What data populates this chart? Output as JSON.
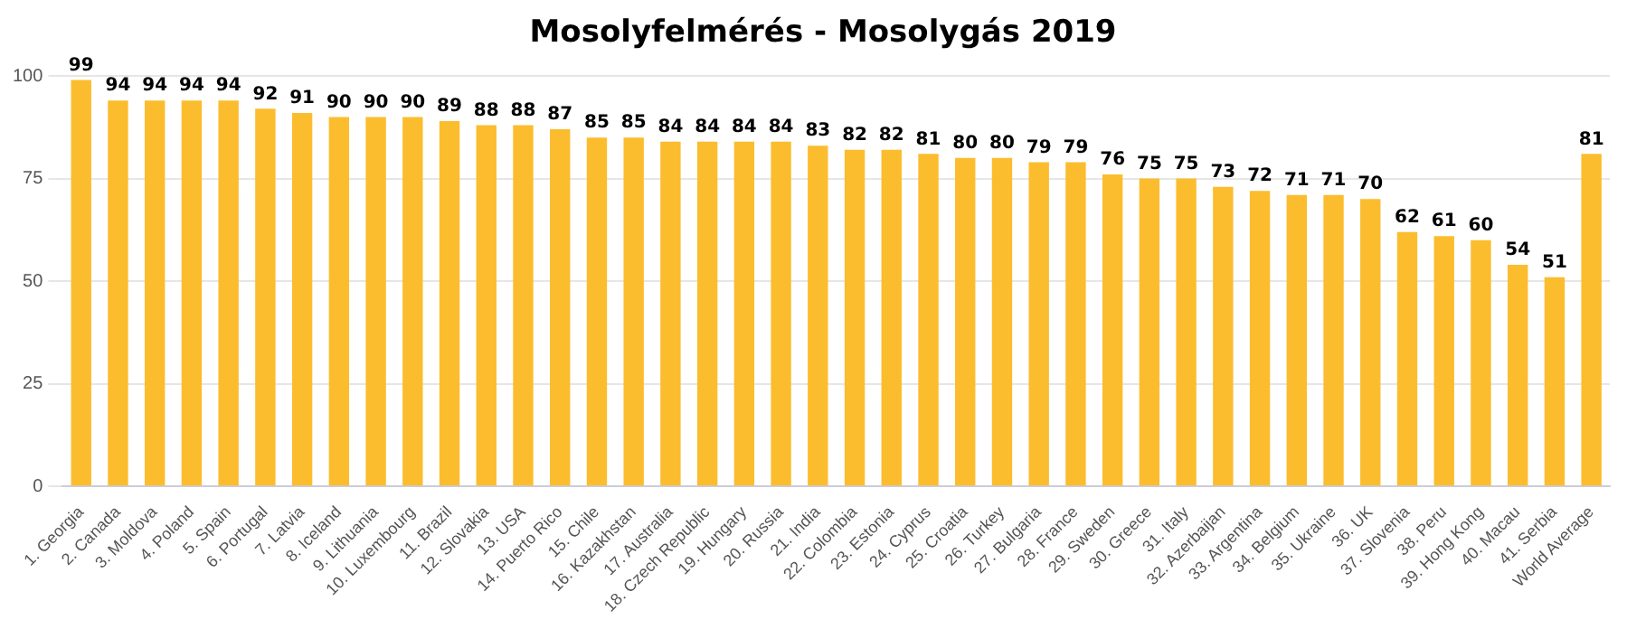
{
  "chart_data": {
    "type": "bar",
    "title": "Mosolyfelmérés - Mosolygás 2019",
    "categories": [
      "1. Georgia",
      "2. Canada",
      "3. Moldova",
      "4. Poland",
      "5. Spain",
      "6. Portugal",
      "7. Latvia",
      "8. Iceland",
      "9. Lithuania",
      "10. Luxembourg",
      "11. Brazil",
      "12. Slovakia",
      "13. USA",
      "14. Puerto Rico",
      "15. Chile",
      "16. Kazakhstan",
      "17. Australia",
      "18. Czech Republic",
      "19. Hungary",
      "20. Russia",
      "21. India",
      "22. Colombia",
      "23. Estonia",
      "24. Cyprus",
      "25. Croatia",
      "26. Turkey",
      "27. Bulgaria",
      "28. France",
      "29. Sweden",
      "30. Greece",
      "31. Italy",
      "32. Azerbaijan",
      "33. Argentina",
      "34. Belgium",
      "35. Ukraine",
      "36. UK",
      "37. Slovenia",
      "38. Peru",
      "39. Hong Kong",
      "40. Macau",
      "41. Serbia",
      "World Average"
    ],
    "values": [
      99,
      94,
      94,
      94,
      94,
      92,
      91,
      90,
      90,
      90,
      89,
      88,
      88,
      87,
      85,
      85,
      84,
      84,
      84,
      84,
      83,
      82,
      82,
      81,
      80,
      80,
      79,
      79,
      76,
      75,
      75,
      73,
      72,
      71,
      71,
      70,
      62,
      61,
      60,
      54,
      51,
      81
    ],
    "color": "#fbbd2e",
    "ylim": [
      0,
      100
    ],
    "yticks": [
      0,
      25,
      50,
      75,
      100
    ],
    "grid": "y",
    "data_labels": true
  }
}
